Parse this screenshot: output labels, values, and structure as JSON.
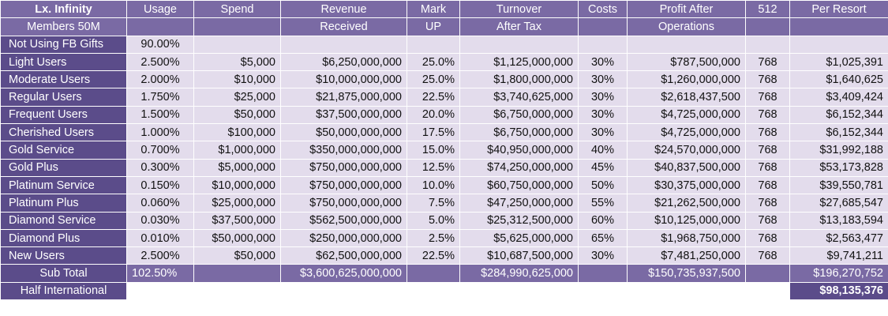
{
  "header": {
    "row1": [
      "Lx. Infinity",
      "Usage",
      "Spend",
      "Revenue",
      "Mark",
      "Turnover",
      "Costs",
      "Profit After",
      "512",
      "Per Resort"
    ],
    "row2": [
      "Members 50M",
      "",
      "",
      "Received",
      "UP",
      "After Tax",
      "",
      "Operations",
      "",
      ""
    ]
  },
  "not_using": {
    "label": "Not Using FB Gifts",
    "usage": "90.00%"
  },
  "rows": [
    {
      "label": "Light Users",
      "usage": "2.500%",
      "spend": "$5,000",
      "revenue": "$6,250,000,000",
      "markup": "25.0%",
      "turnover": "$1,125,000,000",
      "costs": "30%",
      "profit": "$787,500,000",
      "n512": "768",
      "per_resort": "$1,025,391"
    },
    {
      "label": "Moderate Users",
      "usage": "2.000%",
      "spend": "$10,000",
      "revenue": "$10,000,000,000",
      "markup": "25.0%",
      "turnover": "$1,800,000,000",
      "costs": "30%",
      "profit": "$1,260,000,000",
      "n512": "768",
      "per_resort": "$1,640,625"
    },
    {
      "label": "Regular Users",
      "usage": "1.750%",
      "spend": "$25,000",
      "revenue": "$21,875,000,000",
      "markup": "22.5%",
      "turnover": "$3,740,625,000",
      "costs": "30%",
      "profit": "$2,618,437,500",
      "n512": "768",
      "per_resort": "$3,409,424"
    },
    {
      "label": "Frequent Users",
      "usage": "1.500%",
      "spend": "$50,000",
      "revenue": "$37,500,000,000",
      "markup": "20.0%",
      "turnover": "$6,750,000,000",
      "costs": "30%",
      "profit": "$4,725,000,000",
      "n512": "768",
      "per_resort": "$6,152,344"
    },
    {
      "label": "Cherished Users",
      "usage": "1.000%",
      "spend": "$100,000",
      "revenue": "$50,000,000,000",
      "markup": "17.5%",
      "turnover": "$6,750,000,000",
      "costs": "30%",
      "profit": "$4,725,000,000",
      "n512": "768",
      "per_resort": "$6,152,344"
    },
    {
      "label": "Gold Service",
      "usage": "0.700%",
      "spend": "$1,000,000",
      "revenue": "$350,000,000,000",
      "markup": "15.0%",
      "turnover": "$40,950,000,000",
      "costs": "40%",
      "profit": "$24,570,000,000",
      "n512": "768",
      "per_resort": "$31,992,188"
    },
    {
      "label": "Gold Plus",
      "usage": "0.300%",
      "spend": "$5,000,000",
      "revenue": "$750,000,000,000",
      "markup": "12.5%",
      "turnover": "$74,250,000,000",
      "costs": "45%",
      "profit": "$40,837,500,000",
      "n512": "768",
      "per_resort": "$53,173,828"
    },
    {
      "label": "Platinum Service",
      "usage": "0.150%",
      "spend": "$10,000,000",
      "revenue": "$750,000,000,000",
      "markup": "10.0%",
      "turnover": "$60,750,000,000",
      "costs": "50%",
      "profit": "$30,375,000,000",
      "n512": "768",
      "per_resort": "$39,550,781"
    },
    {
      "label": "Platinum Plus",
      "usage": "0.060%",
      "spend": "$25,000,000",
      "revenue": "$750,000,000,000",
      "markup": "7.5%",
      "turnover": "$47,250,000,000",
      "costs": "55%",
      "profit": "$21,262,500,000",
      "n512": "768",
      "per_resort": "$27,685,547"
    },
    {
      "label": "Diamond Service",
      "usage": "0.030%",
      "spend": "$37,500,000",
      "revenue": "$562,500,000,000",
      "markup": "5.0%",
      "turnover": "$25,312,500,000",
      "costs": "60%",
      "profit": "$10,125,000,000",
      "n512": "768",
      "per_resort": "$13,183,594"
    },
    {
      "label": "Diamond Plus",
      "usage": "0.010%",
      "spend": "$50,000,000",
      "revenue": "$250,000,000,000",
      "markup": "2.5%",
      "turnover": "$5,625,000,000",
      "costs": "65%",
      "profit": "$1,968,750,000",
      "n512": "768",
      "per_resort": "$2,563,477"
    },
    {
      "label": "New Users",
      "usage": "2.500%",
      "spend": "$50,000",
      "revenue": "$62,500,000,000",
      "markup": "22.5%",
      "turnover": "$10,687,500,000",
      "costs": "30%",
      "profit": "$7,481,250,000",
      "n512": "768",
      "per_resort": "$9,741,211"
    }
  ],
  "subtotal": {
    "label": "Sub Total",
    "usage": "102.50%",
    "revenue": "$3,600,625,000,000",
    "turnover": "$284,990,625,000",
    "profit": "$150,735,937,500",
    "per_resort": "$196,270,752"
  },
  "international": {
    "label": "Half International",
    "value": "$98,135,376"
  }
}
